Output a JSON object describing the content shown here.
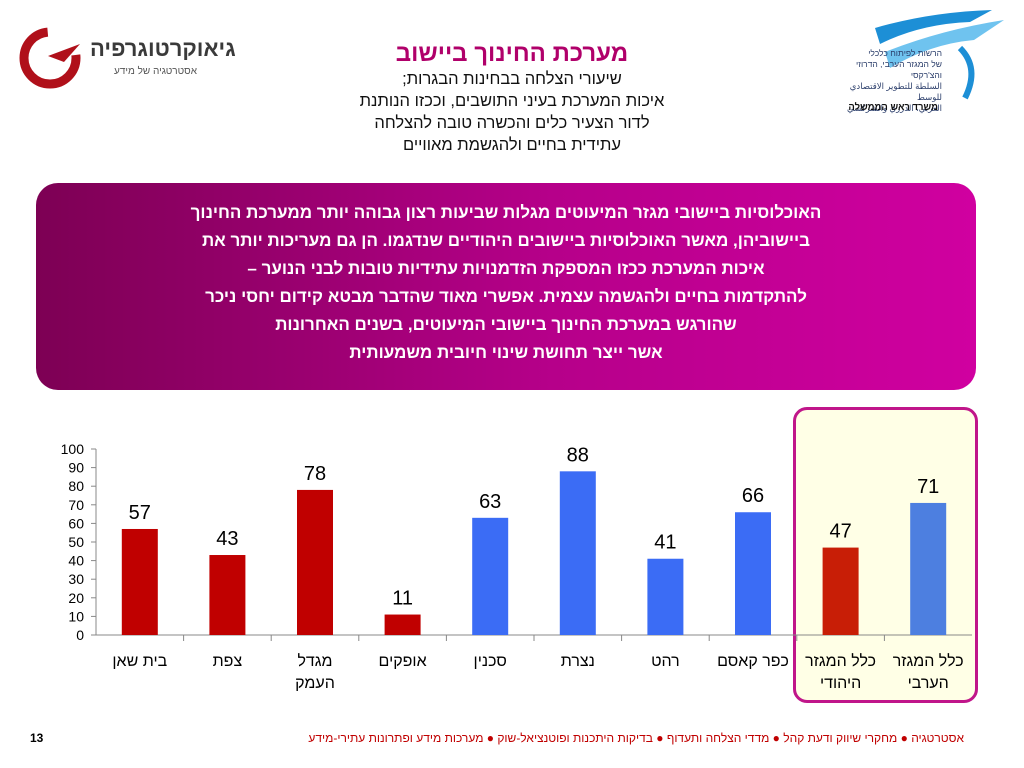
{
  "header": {
    "title": "מערכת החינוך ביישוב",
    "subtitle_lines": [
      "שיעורי הצלחה בבחינות הבגרות;",
      "איכות המערכת בעיני התושבים, וככזו הנותנת",
      "לדור הצעיר כלים והכשרה טובה להצלחה",
      "עתידית בחיים ולהגשמת מאוויים"
    ]
  },
  "logo_left": {
    "brand": "גיאוקרטוגרפיה",
    "tagline": "אסטרטגיה של מידע"
  },
  "logo_right": {
    "org_lines": [
      "הרשות לפיתוח כלכלי",
      "של המגזר הערבי, הדרוזי והצ'רקסי",
      "السلطة للتطوير الاقتصادي للوسط",
      "العربي، الدرزي والشركسي"
    ],
    "ministry": "משרד ראש הממשלה"
  },
  "banner": {
    "lines": [
      "האוכלוסיות ביישובי מגזר המיעוטים מגלות שביעות רצון גבוהה יותר ממערכת החינוך",
      "ביישוביהן, מאשר האוכלוסיות ביישובים היהודיים שנדגמו. הן גם מעריכות יותר את",
      "איכות המערכת ככזו המספקת הזדמנויות עתידיות טובות לבני הנוער –",
      "להתקדמות בחיים ולהגשמה עצמית. אפשרי מאוד שהדבר מבטא קידום יחסי ניכר",
      "שהורגש במערכת החינוך ביישובי המיעוטים, בשנים האחרונות",
      "אשר ייצר תחושת שינוי חיובית משמעותית"
    ]
  },
  "chart_data": {
    "type": "bar",
    "categories": [
      "בית שאן",
      "צפת",
      "מגדל העמק",
      "אופקים",
      "סכנין",
      "נצרת",
      "רהט",
      "כפר קאסם",
      "כלל המגזר היהודי",
      "כלל המגזר הערבי"
    ],
    "category_lines": [
      [
        "בית שאן"
      ],
      [
        "צפת"
      ],
      [
        "מגדל",
        "העמק"
      ],
      [
        "אופקים"
      ],
      [
        "סכנין"
      ],
      [
        "נצרת"
      ],
      [
        "רהט"
      ],
      [
        "כפר קאסם"
      ],
      [
        "כלל המגזר",
        "היהודי"
      ],
      [
        "כלל המגזר",
        "הערבי"
      ]
    ],
    "values": [
      57,
      43,
      78,
      11,
      63,
      88,
      41,
      66,
      47,
      71
    ],
    "bar_colors": [
      "#c00000",
      "#c00000",
      "#c00000",
      "#c00000",
      "#3b6cf5",
      "#3b6cf5",
      "#3b6cf5",
      "#3b6cf5",
      "#c81e06",
      "#4d7fe0"
    ],
    "ylim": [
      0,
      100
    ],
    "yticks": [
      0,
      10,
      20,
      30,
      40,
      50,
      60,
      70,
      80,
      90,
      100
    ],
    "grid": false,
    "legend": "none",
    "highlighted": [
      "כלל המגזר היהודי",
      "כלל המגזר הערבי"
    ]
  },
  "footer": {
    "text": "אסטרטגיה ● מחקרי שיווק ודעת קהל ● מדדי הצלחה ותעדוף ● בדיקות היתכנות ופוטנציאל-שוק ● מערכות מידע ופתרונות עתירי-מידע",
    "page_number": "13"
  },
  "colors": {
    "title": "#b0006a",
    "banner": "#b6008a",
    "red_bars": "#c00000",
    "blue_bars": "#3b6cf5",
    "footer": "#c00000"
  }
}
